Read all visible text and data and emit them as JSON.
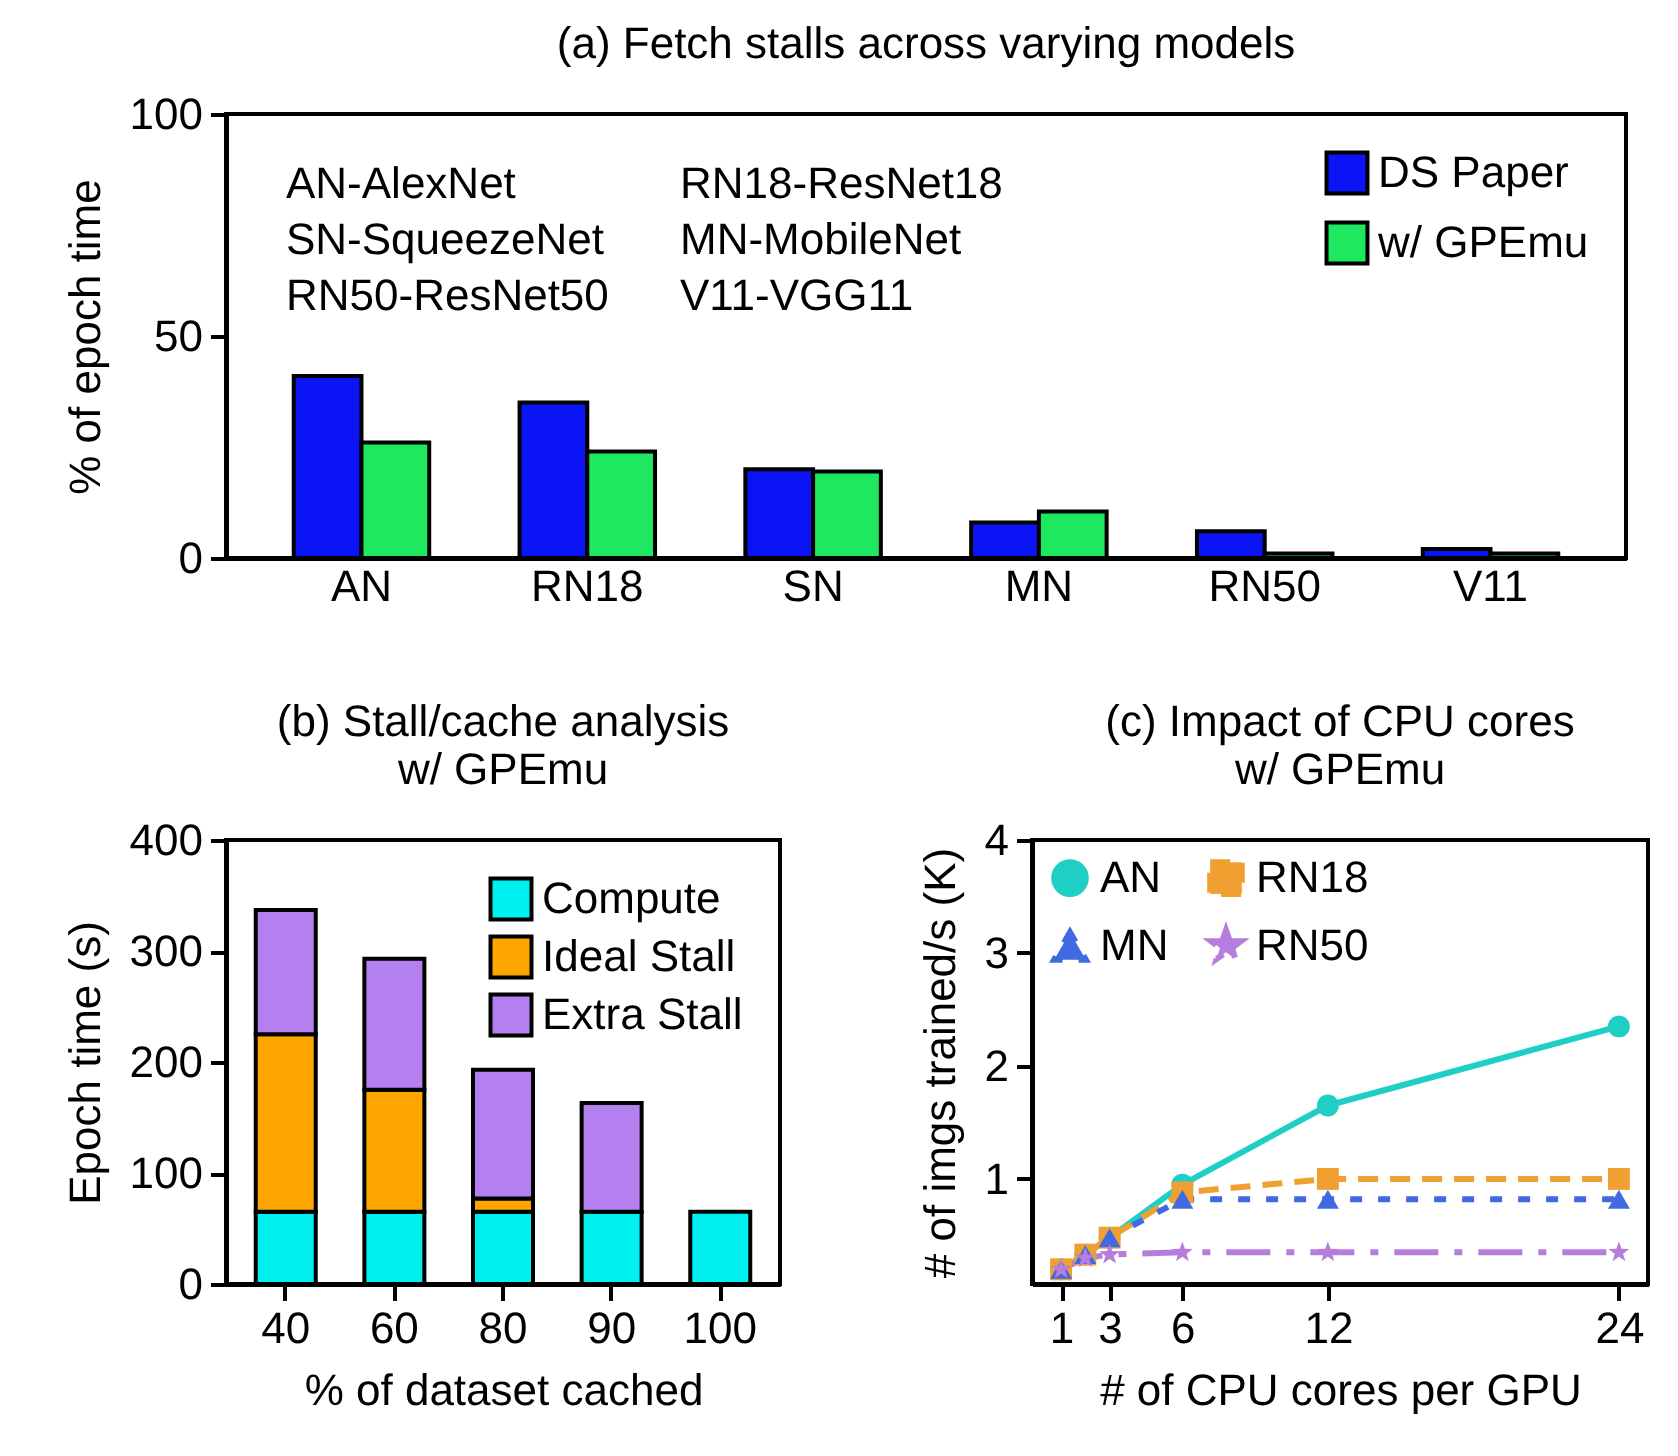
{
  "chart_data": [
    {
      "type": "bar",
      "title": "(a) Fetch stalls across varying models",
      "ylabel": "% of epoch time",
      "categories": [
        "AN",
        "RN18",
        "SN",
        "MN",
        "RN50",
        "V11"
      ],
      "series": [
        {
          "name": "DS Paper",
          "color": "#0a14f5",
          "values": [
            41,
            35,
            20,
            8,
            6,
            2
          ]
        },
        {
          "name": "w/ GPEmu",
          "color": "#1ee860",
          "values": [
            26,
            24,
            19.5,
            10.5,
            1,
            1
          ]
        }
      ],
      "ylim": [
        0,
        100
      ],
      "yticks": [
        0,
        50,
        100
      ],
      "legend": "top right",
      "grid": false,
      "annotations": [
        "AN-AlexNet",
        "RN18-ResNet18",
        "SN-SqueezeNet",
        "MN-MobileNet",
        "RN50-ResNet50",
        "V11-VGG11"
      ]
    },
    {
      "type": "bar",
      "stacked": true,
      "title": "(b) Stall/cache analysis\nw/ GPEmu",
      "xlabel": "% of dataset cached",
      "ylabel": "Epoch time (s)",
      "categories": [
        "40",
        "60",
        "80",
        "90",
        "100"
      ],
      "series": [
        {
          "name": "Compute",
          "color": "#00f0f0",
          "values": [
            65,
            65,
            65,
            65,
            65
          ]
        },
        {
          "name": "Ideal Stall",
          "color": "#ffa500",
          "values": [
            160,
            110,
            12,
            null,
            null
          ]
        },
        {
          "name": "Extra Stall",
          "color": "#b480f0",
          "values": [
            112,
            118,
            116,
            98,
            null
          ]
        }
      ],
      "ylim": [
        0,
        400
      ],
      "yticks": [
        0,
        100,
        200,
        300,
        400
      ],
      "legend": "top right",
      "grid": false
    },
    {
      "type": "line",
      "title": "(c) Impact of CPU cores\nw/ GPEmu",
      "xlabel": "# of CPU cores per GPU",
      "ylabel": "# of imgs trained/s (K)",
      "series": [
        {
          "name": "AN",
          "color": "#1fcfc6",
          "marker": "circle",
          "line_style": "solid",
          "x": [
            1,
            2,
            3,
            6,
            12,
            24
          ],
          "values": [
            0.2,
            0.33,
            0.48,
            0.95,
            1.65,
            2.35
          ]
        },
        {
          "name": "RN18",
          "color": "#f0a030",
          "marker": "square",
          "line_style": "dashed",
          "x": [
            1,
            2,
            3,
            6,
            12,
            24
          ],
          "values": [
            0.2,
            0.33,
            0.48,
            0.88,
            1.0,
            1.0
          ]
        },
        {
          "name": "MN",
          "color": "#4169e1",
          "marker": "triangle",
          "line_style": "dotted",
          "x": [
            1,
            2,
            3,
            6,
            12,
            24
          ],
          "values": [
            0.2,
            0.33,
            0.48,
            0.82,
            0.82,
            0.82
          ]
        },
        {
          "name": "RN50",
          "color": "#b57edc",
          "marker": "star",
          "line_style": "dashdot",
          "x": [
            1,
            2,
            3,
            6,
            12,
            24
          ],
          "values": [
            0.2,
            0.3,
            0.33,
            0.35,
            0.35,
            0.35
          ]
        }
      ],
      "xlim": [
        -0.2,
        25.2
      ],
      "xticks": [
        1,
        3,
        6,
        12,
        24
      ],
      "ylim": [
        0.07,
        4
      ],
      "yticks": [
        1,
        2,
        3,
        4
      ],
      "legend": "top",
      "grid": false
    }
  ]
}
